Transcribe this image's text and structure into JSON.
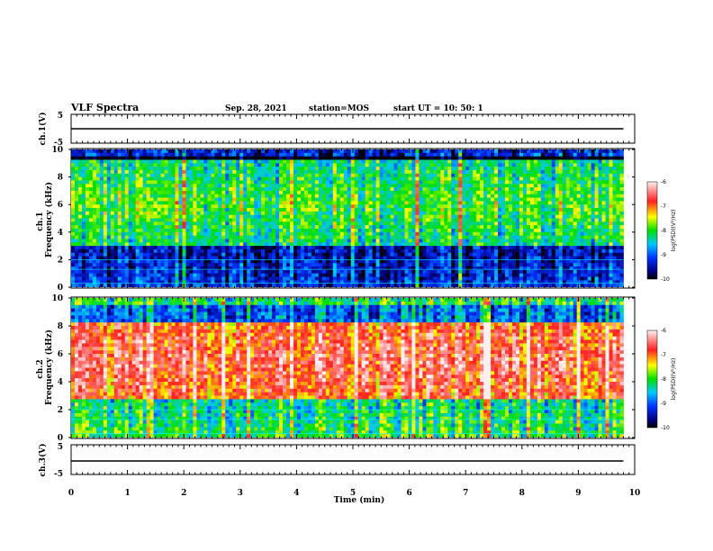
{
  "header": {
    "title": "VLF Spectra",
    "date": "Sep. 28, 2021",
    "station": "station=MOS",
    "start": "start  UT =   10: 50: 1"
  },
  "chart_data": [
    {
      "type": "line",
      "panel": "ch1-waveform",
      "ylabel": "ch.1(V)",
      "ylim": [
        -5,
        5
      ],
      "yticks": [
        "5",
        "-5"
      ],
      "x": [
        0,
        10
      ],
      "values": [
        0,
        0
      ]
    },
    {
      "type": "heatmap",
      "panel": "ch1-spectrogram",
      "ylabel_line1": "ch.1",
      "ylabel_line2": "Frequency (kHz)",
      "ylim": [
        0,
        10
      ],
      "yticks": [
        "0",
        "2",
        "4",
        "6",
        "8",
        "10"
      ],
      "colorbar_label": "log(PSD)(V²/Hz)",
      "colorbar_ticks": [
        "-6",
        "-7",
        "-8",
        "-9",
        "-10"
      ],
      "colorbar_range": [
        -10,
        -6
      ],
      "band_low_khz": 3.0,
      "band_high_khz": 9.2
    },
    {
      "type": "heatmap",
      "panel": "ch2-spectrogram",
      "ylabel_line1": "ch.2",
      "ylabel_line2": "Frequency (kHz)",
      "ylim": [
        0,
        10
      ],
      "yticks": [
        "0",
        "2",
        "4",
        "6",
        "8",
        "10"
      ],
      "colorbar_label": "log(PSD)(V²/Hz)",
      "colorbar_ticks": [
        "-6",
        "-7",
        "-8",
        "-9",
        "-10"
      ],
      "colorbar_range": [
        -10,
        -6
      ],
      "band_low_khz": 2.8,
      "band_high_khz": 8.2
    },
    {
      "type": "line",
      "panel": "ch3-waveform",
      "ylabel": "ch.3(V)",
      "ylim": [
        -5,
        5
      ],
      "yticks": [
        "5",
        "-5"
      ],
      "x": [
        0,
        10
      ],
      "values": [
        0,
        0
      ]
    }
  ],
  "xaxis": {
    "label": "Time (min)",
    "ticks": [
      "0",
      "1",
      "2",
      "3",
      "4",
      "5",
      "6",
      "7",
      "8",
      "9",
      "10"
    ],
    "range": [
      0,
      10
    ]
  }
}
